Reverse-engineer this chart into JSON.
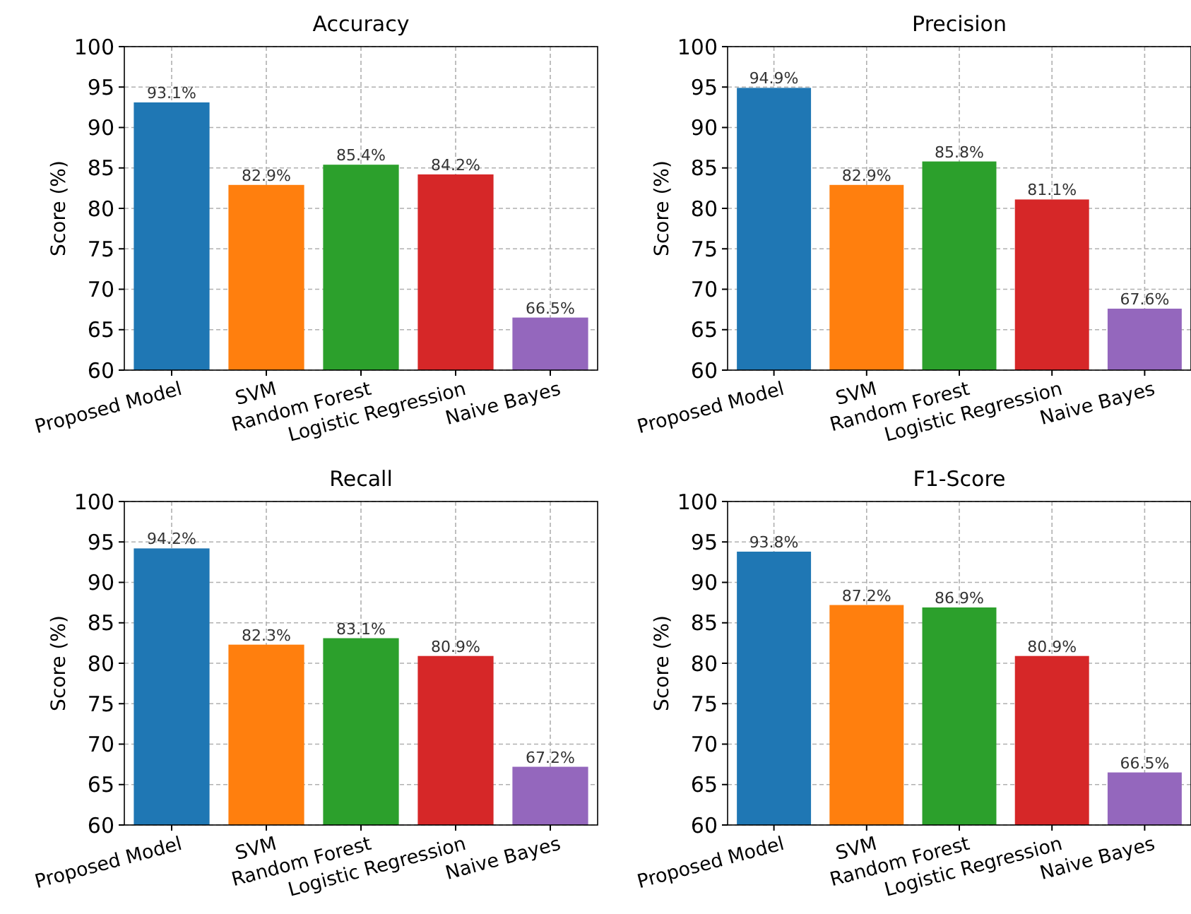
{
  "chart_data": [
    {
      "type": "bar",
      "title": "Accuracy",
      "ylabel": "Score (%)",
      "categories": [
        "Proposed Model",
        "SVM",
        "Random Forest",
        "Logistic Regression",
        "Naive Bayes"
      ],
      "values": [
        93.1,
        82.9,
        85.4,
        84.2,
        66.5
      ],
      "value_labels": [
        "93.1%",
        "82.9%",
        "85.4%",
        "84.2%",
        "66.5%"
      ],
      "colors": [
        "#1f77b4",
        "#ff7f0e",
        "#2ca02c",
        "#d62728",
        "#9467bd"
      ],
      "ylim": [
        60,
        100
      ],
      "yticks": [
        60,
        65,
        70,
        75,
        80,
        85,
        90,
        95,
        100
      ],
      "grid": true
    },
    {
      "type": "bar",
      "title": "Precision",
      "ylabel": "Score (%)",
      "categories": [
        "Proposed Model",
        "SVM",
        "Random Forest",
        "Logistic Regression",
        "Naive Bayes"
      ],
      "values": [
        94.9,
        82.9,
        85.8,
        81.1,
        67.6
      ],
      "value_labels": [
        "94.9%",
        "82.9%",
        "85.8%",
        "81.1%",
        "67.6%"
      ],
      "colors": [
        "#1f77b4",
        "#ff7f0e",
        "#2ca02c",
        "#d62728",
        "#9467bd"
      ],
      "ylim": [
        60,
        100
      ],
      "yticks": [
        60,
        65,
        70,
        75,
        80,
        85,
        90,
        95,
        100
      ],
      "grid": true
    },
    {
      "type": "bar",
      "title": "Recall",
      "ylabel": "Score (%)",
      "categories": [
        "Proposed Model",
        "SVM",
        "Random Forest",
        "Logistic Regression",
        "Naive Bayes"
      ],
      "values": [
        94.2,
        82.3,
        83.1,
        80.9,
        67.2
      ],
      "value_labels": [
        "94.2%",
        "82.3%",
        "83.1%",
        "80.9%",
        "67.2%"
      ],
      "colors": [
        "#1f77b4",
        "#ff7f0e",
        "#2ca02c",
        "#d62728",
        "#9467bd"
      ],
      "ylim": [
        60,
        100
      ],
      "yticks": [
        60,
        65,
        70,
        75,
        80,
        85,
        90,
        95,
        100
      ],
      "grid": true
    },
    {
      "type": "bar",
      "title": "F1-Score",
      "ylabel": "Score (%)",
      "categories": [
        "Proposed Model",
        "SVM",
        "Random Forest",
        "Logistic Regression",
        "Naive Bayes"
      ],
      "values": [
        93.8,
        87.2,
        86.9,
        80.9,
        66.5
      ],
      "value_labels": [
        "93.8%",
        "87.2%",
        "86.9%",
        "80.9%",
        "66.5%"
      ],
      "colors": [
        "#1f77b4",
        "#ff7f0e",
        "#2ca02c",
        "#d62728",
        "#9467bd"
      ],
      "ylim": [
        60,
        100
      ],
      "yticks": [
        60,
        65,
        70,
        75,
        80,
        85,
        90,
        95,
        100
      ],
      "grid": true
    }
  ]
}
